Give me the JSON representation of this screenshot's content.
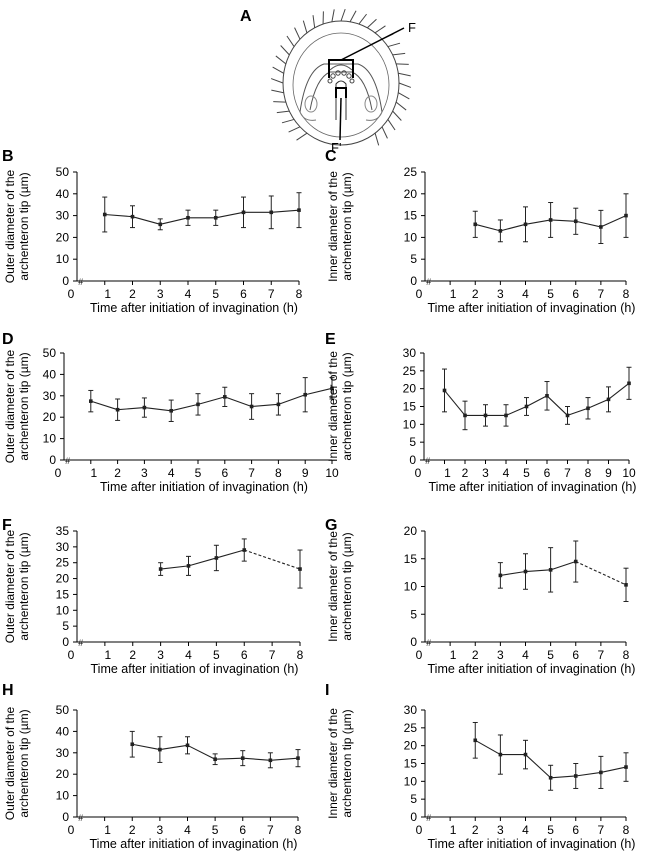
{
  "figure": {
    "panel_a_letter": "A",
    "label_f": "F",
    "label_f_prime": "F'"
  },
  "chart_data": [
    {
      "panel": "B",
      "type": "line",
      "ylabel": "Outer diameter of the archenteron tip (µm)",
      "xlabel": "Time after initiation of invagination (h)",
      "xlim": [
        0,
        8
      ],
      "ylim": [
        0,
        50
      ],
      "yticks": [
        0,
        10,
        20,
        30,
        40,
        50
      ],
      "xticks": [
        "0",
        "1",
        "2",
        "3",
        "4",
        "5",
        "6",
        "7",
        "8"
      ],
      "x": [
        1,
        2,
        3,
        4,
        5,
        6,
        7,
        8
      ],
      "y": [
        30.5,
        29.5,
        26,
        29,
        29,
        31.5,
        31.5,
        32.5
      ],
      "err": [
        8,
        5,
        2.5,
        3.5,
        3.5,
        7,
        7.5,
        8
      ],
      "dashed_from": null,
      "marker_note": "#"
    },
    {
      "panel": "C",
      "type": "line",
      "ylabel": "Inner diameter of the archenteron tip (µm)",
      "xlabel": "Time after initiation of invagination (h)",
      "xlim": [
        0,
        8
      ],
      "ylim": [
        0,
        25
      ],
      "yticks": [
        0,
        5,
        10,
        15,
        20,
        25
      ],
      "xticks": [
        "0",
        "1",
        "2",
        "3",
        "4",
        "5",
        "6",
        "7",
        "8"
      ],
      "x": [
        2,
        3,
        4,
        5,
        6,
        7,
        8
      ],
      "y": [
        13,
        11.5,
        13,
        14,
        13.7,
        12.4,
        15
      ],
      "err": [
        3,
        2.5,
        4,
        4,
        3,
        3.8,
        5
      ],
      "dashed_from": null,
      "marker_note": "#"
    },
    {
      "panel": "D",
      "type": "line",
      "ylabel": "Outer diameter of the archenteron tip (µm)",
      "xlabel": "Time after initiation of invagination (h)",
      "xlim": [
        0,
        10
      ],
      "ylim": [
        0,
        50
      ],
      "yticks": [
        0,
        10,
        20,
        30,
        40,
        50
      ],
      "xticks": [
        "0",
        "1",
        "2",
        "3",
        "4",
        "5",
        "6",
        "7",
        "8",
        "9",
        "10"
      ],
      "x": [
        1,
        2,
        3,
        4,
        5,
        6,
        7,
        8,
        9,
        10
      ],
      "y": [
        27.5,
        23.5,
        24.5,
        23,
        26,
        29.5,
        25,
        26,
        30.5,
        33.5
      ],
      "err": [
        5,
        5,
        4.5,
        5,
        5,
        4.5,
        6,
        5,
        8,
        5
      ],
      "dashed_from": null,
      "marker_note": "#"
    },
    {
      "panel": "E",
      "type": "line",
      "ylabel": "Inner diameter of the archenteron tip (µm)",
      "xlabel": "Time after initiation of invagination (h)",
      "xlim": [
        0,
        10
      ],
      "ylim": [
        0,
        30
      ],
      "yticks": [
        0,
        5,
        10,
        15,
        20,
        25,
        30
      ],
      "xticks": [
        "0",
        "1",
        "2",
        "3",
        "4",
        "5",
        "6",
        "7",
        "8",
        "9",
        "10"
      ],
      "x": [
        1,
        2,
        3,
        4,
        5,
        6,
        7,
        8,
        9,
        10
      ],
      "y": [
        19.5,
        12.5,
        12.5,
        12.5,
        15,
        18,
        12.5,
        14.5,
        17,
        21.5
      ],
      "err": [
        6,
        4,
        3,
        3,
        2.5,
        4,
        2.5,
        3,
        3.5,
        4.5
      ],
      "dashed_from": null,
      "marker_note": "#"
    },
    {
      "panel": "F",
      "type": "line",
      "ylabel": "Outer diameter of the archenteron tip (µm)",
      "xlabel": "Time after initiation of invagination (h)",
      "xlim": [
        0,
        8
      ],
      "ylim": [
        0,
        35
      ],
      "yticks": [
        0,
        5,
        10,
        15,
        20,
        25,
        30,
        35
      ],
      "xticks": [
        "0",
        "1",
        "2",
        "3",
        "4",
        "5",
        "6",
        "7",
        "8"
      ],
      "x": [
        3,
        4,
        5,
        6,
        8
      ],
      "y": [
        23,
        24,
        26.5,
        29,
        23
      ],
      "err": [
        2,
        3,
        4,
        3.5,
        6
      ],
      "dashed_from": 3,
      "marker_note": "#"
    },
    {
      "panel": "G",
      "type": "line",
      "ylabel": "Inner diameter of the archenteron tip (µm)",
      "xlabel": "Time after initiation of invagination (h)",
      "xlim": [
        0,
        8
      ],
      "ylim": [
        0,
        20
      ],
      "yticks": [
        0,
        5,
        10,
        15,
        20
      ],
      "xticks": [
        "0",
        "1",
        "2",
        "3",
        "4",
        "5",
        "6",
        "7",
        "8"
      ],
      "x": [
        3,
        4,
        5,
        6,
        8
      ],
      "y": [
        12,
        12.7,
        13,
        14.5,
        10.3
      ],
      "err": [
        2.3,
        3.2,
        4,
        3.7,
        3
      ],
      "dashed_from": 3,
      "marker_note": "#"
    },
    {
      "panel": "H",
      "type": "line",
      "ylabel": "Outer diameter of the archenteron tip (µm)",
      "xlabel": "Time after initiation of invagination (h)",
      "xlim": [
        0,
        8
      ],
      "ylim": [
        0,
        50
      ],
      "yticks": [
        0,
        10,
        20,
        30,
        40,
        50
      ],
      "xticks": [
        "0",
        "1",
        "2",
        "3",
        "4",
        "5",
        "6",
        "7",
        "8"
      ],
      "x": [
        2,
        3,
        4,
        5,
        6,
        7,
        8
      ],
      "y": [
        34,
        31.5,
        33.5,
        27,
        27.5,
        26.5,
        27.5
      ],
      "err": [
        6,
        6,
        4,
        2.5,
        3.5,
        3.5,
        4
      ],
      "dashed_from": null,
      "marker_note": "#"
    },
    {
      "panel": "I",
      "type": "line",
      "ylabel": "Inner diameter of the archenteron tip (µm)",
      "xlabel": "Time after initiation of invagination (h)",
      "xlim": [
        0,
        8
      ],
      "ylim": [
        0,
        30
      ],
      "yticks": [
        0,
        5,
        10,
        15,
        20,
        25,
        30
      ],
      "xticks": [
        "0",
        "1",
        "2",
        "3",
        "4",
        "5",
        "6",
        "7",
        "8"
      ],
      "x": [
        2,
        3,
        4,
        5,
        6,
        7,
        8
      ],
      "y": [
        21.5,
        17.5,
        17.5,
        11,
        11.5,
        12.5,
        14
      ],
      "err": [
        5,
        5.5,
        4,
        3.5,
        3.5,
        4.5,
        4
      ],
      "dashed_from": null,
      "marker_note": "#"
    }
  ]
}
